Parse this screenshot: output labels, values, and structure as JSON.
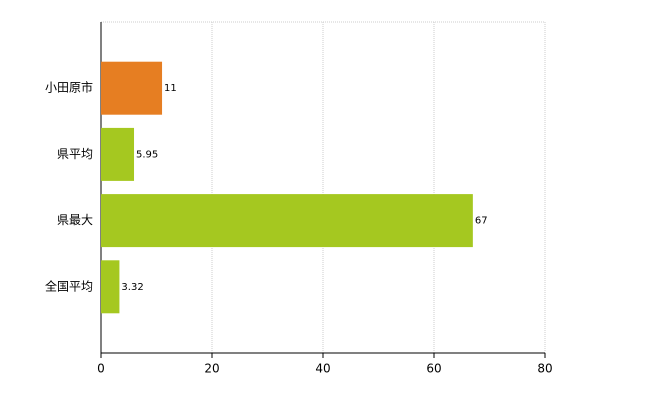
{
  "chart_data": {
    "type": "bar",
    "orientation": "horizontal",
    "categories": [
      "小田原市",
      "県平均",
      "県最大",
      "全国平均"
    ],
    "values": [
      11,
      5.95,
      67,
      3.32
    ],
    "colors": [
      "#e67e22",
      "#a5c820",
      "#a5c820",
      "#a5c820"
    ],
    "xlim": [
      0,
      80
    ],
    "xticks": [
      0,
      20,
      40,
      60,
      80
    ],
    "grid": true
  }
}
